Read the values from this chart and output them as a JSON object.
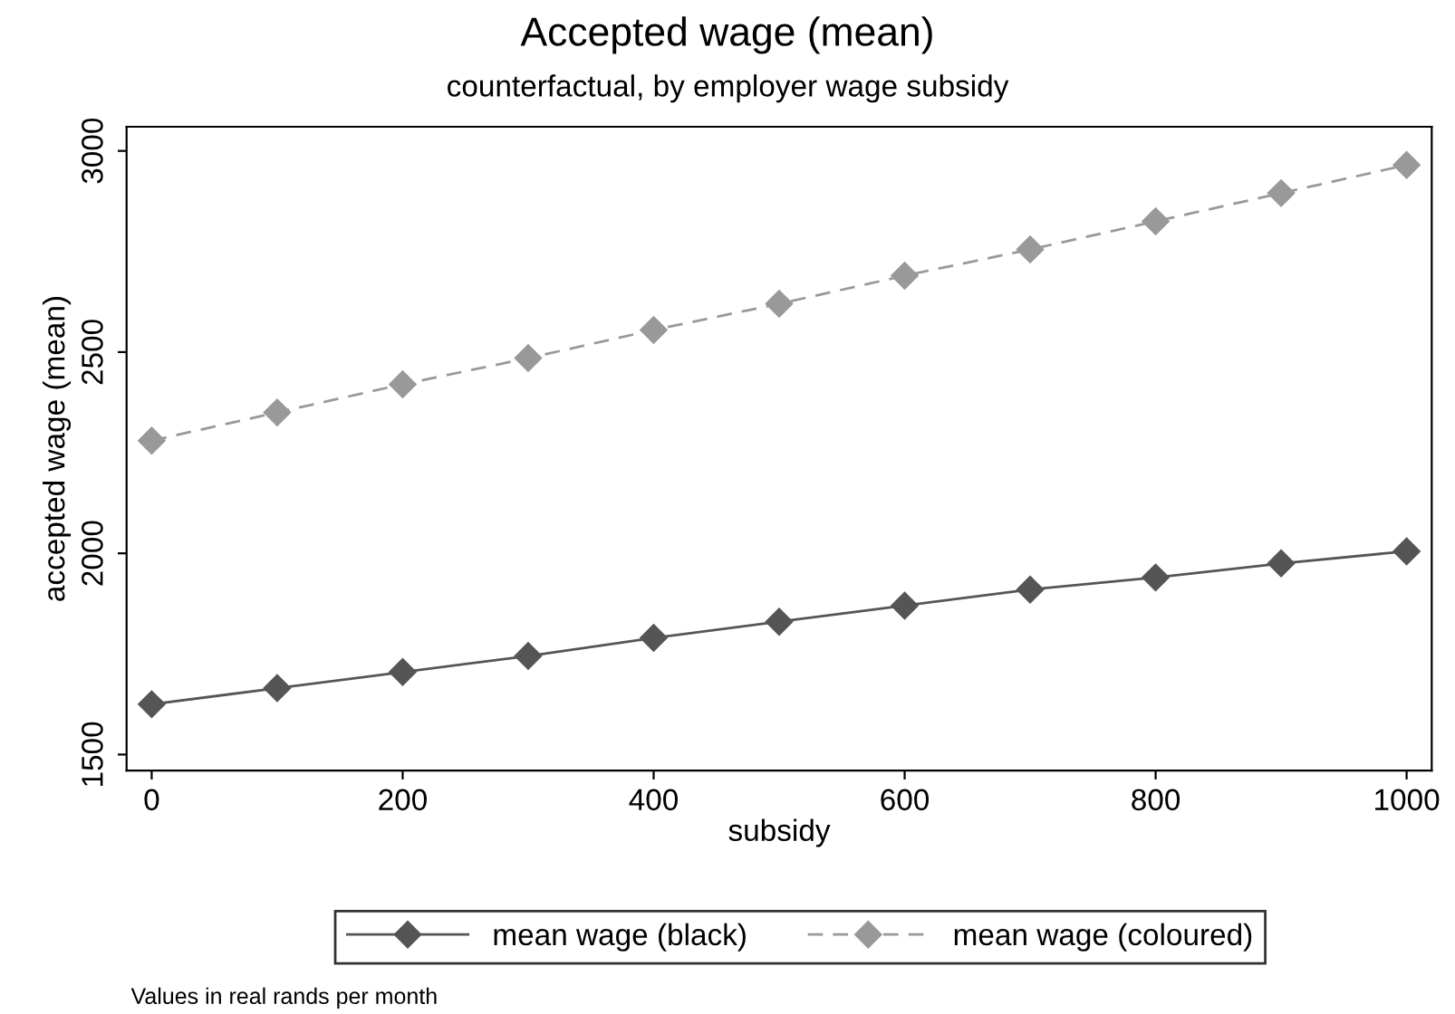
{
  "chart_data": {
    "type": "line",
    "title": "Accepted wage (mean)",
    "subtitle": "counterfactual, by employer wage subsidy",
    "xlabel": "subsidy",
    "ylabel": "accepted wage (mean)",
    "x": [
      0,
      100,
      200,
      300,
      400,
      500,
      600,
      700,
      800,
      900,
      1000
    ],
    "series": [
      {
        "name": "mean wage (black)",
        "color": "#555555",
        "line_style": "solid",
        "values": [
          1625,
          1665,
          1705,
          1745,
          1790,
          1830,
          1870,
          1910,
          1940,
          1975,
          2005
        ]
      },
      {
        "name": "mean wage (coloured)",
        "color": "#999999",
        "line_style": "dashed",
        "values": [
          2280,
          2350,
          2420,
          2485,
          2555,
          2620,
          2690,
          2755,
          2825,
          2895,
          2965
        ]
      }
    ],
    "marker": "diamond",
    "xlim": [
      -20,
      1020
    ],
    "ylim": [
      1460,
      3060
    ],
    "xticks": [
      0,
      200,
      400,
      600,
      800,
      1000
    ],
    "yticks": [
      1500,
      2000,
      2500,
      3000
    ],
    "grid": false,
    "legend": "bottom",
    "annotations": [
      "Values in real rands per month"
    ]
  }
}
